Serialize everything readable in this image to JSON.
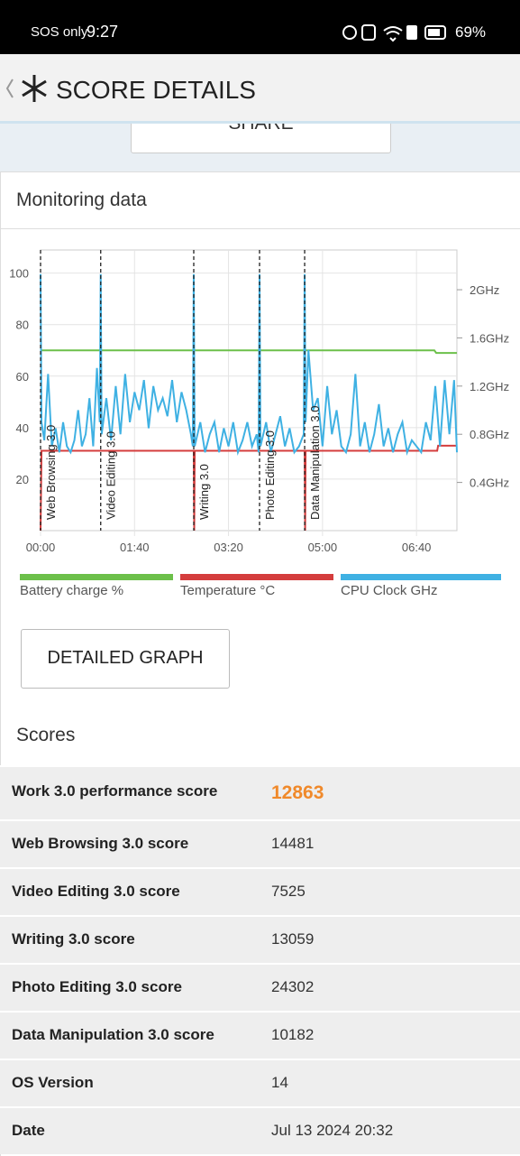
{
  "status_bar": {
    "carrier": "SOS only",
    "time": "9:27",
    "battery": "69%"
  },
  "header": {
    "title": "SCORE DETAILS"
  },
  "share_button": "SHARE",
  "monitoring": {
    "title": "Monitoring data"
  },
  "chart_data": {
    "type": "line",
    "xlim": [
      0,
      443
    ],
    "xticks": [
      {
        "value": 0,
        "label": "00:00"
      },
      {
        "value": 100,
        "label": "01:40"
      },
      {
        "value": 200,
        "label": "03:20"
      },
      {
        "value": 300,
        "label": "05:00"
      },
      {
        "value": 400,
        "label": "06:40"
      }
    ],
    "ylim": [
      0,
      109
    ],
    "yticks": [
      20,
      40,
      60,
      80,
      100
    ],
    "y2lim": [
      0,
      2.33
    ],
    "y2ticks": [
      {
        "value": 0.4,
        "label": "0.4GHz"
      },
      {
        "value": 0.8,
        "label": "0.8GHz"
      },
      {
        "value": 1.2,
        "label": "1.2GHz"
      },
      {
        "value": 1.6,
        "label": "1.6GHz"
      },
      {
        "value": 2,
        "label": "2GHz"
      }
    ],
    "grid": true,
    "annotations": [
      {
        "x": 0,
        "label": "Web Browsing 3.0"
      },
      {
        "x": 64,
        "label": "Video Editing 3.0"
      },
      {
        "x": 163,
        "label": "Writing 3.0"
      },
      {
        "x": 233,
        "label": "Photo Editing 3.0"
      },
      {
        "x": 281,
        "label": "Data Manipulation 3.0"
      }
    ],
    "series": [
      {
        "name": "Battery charge %",
        "color": "#6cc04a",
        "x": [
          1,
          419,
          421,
          443
        ],
        "values": [
          70,
          70,
          69,
          69
        ]
      },
      {
        "name": "Temperature °C",
        "color": "#d43d3d",
        "x": [
          0,
          1,
          163,
          163.5,
          164,
          281,
          281.5,
          282,
          422,
          423,
          443
        ],
        "values": [
          0,
          31,
          31,
          0,
          31,
          31,
          0,
          31,
          31,
          33,
          33
        ]
      },
      {
        "name": "CPU Clock GHz",
        "color": "#3fb1e3",
        "axis": "y2",
        "x": [
          0,
          1,
          4,
          8,
          12,
          16,
          20,
          24,
          28,
          32,
          36,
          40,
          44,
          48,
          52,
          56,
          60,
          63,
          64,
          65,
          70,
          75,
          80,
          85,
          90,
          95,
          100,
          105,
          110,
          115,
          120,
          125,
          130,
          135,
          140,
          145,
          150,
          155,
          160,
          162,
          163,
          164,
          170,
          175,
          180,
          185,
          190,
          195,
          200,
          205,
          210,
          215,
          220,
          225,
          230,
          232,
          233,
          234,
          240,
          245,
          250,
          255,
          260,
          265,
          270,
          275,
          280,
          281,
          282,
          285,
          290,
          295,
          300,
          305,
          310,
          315,
          320,
          325,
          330,
          335,
          340,
          345,
          350,
          355,
          360,
          365,
          370,
          375,
          380,
          385,
          390,
          395,
          400,
          405,
          410,
          415,
          420,
          425,
          430,
          435,
          440,
          443
        ],
        "values": [
          2.13,
          0.9,
          0.75,
          1.3,
          0.7,
          0.85,
          0.65,
          0.9,
          0.7,
          0.65,
          0.75,
          1.0,
          0.7,
          0.8,
          1.1,
          0.7,
          1.35,
          0.9,
          2.13,
          0.8,
          1.1,
          0.75,
          1.2,
          0.8,
          1.3,
          0.9,
          1.15,
          1.0,
          1.25,
          0.85,
          1.2,
          1.0,
          1.1,
          0.95,
          1.25,
          0.9,
          1.15,
          1.0,
          0.8,
          0.7,
          2.13,
          0.7,
          0.9,
          0.65,
          0.8,
          0.9,
          0.65,
          0.85,
          0.7,
          0.9,
          0.65,
          0.75,
          0.9,
          0.7,
          0.8,
          0.65,
          2.13,
          0.7,
          0.9,
          0.65,
          0.8,
          0.95,
          0.7,
          0.85,
          0.65,
          0.7,
          0.8,
          2.13,
          0.9,
          1.5,
          1.0,
          1.1,
          0.7,
          1.2,
          0.8,
          1.0,
          0.7,
          0.65,
          0.8,
          1.3,
          0.7,
          0.9,
          0.65,
          0.8,
          1.05,
          0.7,
          0.85,
          0.65,
          0.8,
          0.9,
          0.65,
          0.75,
          0.7,
          0.65,
          0.9,
          0.75,
          1.2,
          0.7,
          1.25,
          0.8,
          1.25,
          0.65
        ]
      }
    ]
  },
  "detailed_graph_button": "DETAILED GRAPH",
  "scores": {
    "title": "Scores",
    "rows": [
      [
        "Work 3.0 performance score",
        "12863"
      ],
      [
        "Web Browsing 3.0 score",
        "14481"
      ],
      [
        "Video Editing 3.0 score",
        "7525"
      ],
      [
        "Writing 3.0 score",
        "13059"
      ],
      [
        "Photo Editing 3.0 score",
        "24302"
      ],
      [
        "Data Manipulation 3.0 score",
        "10182"
      ],
      [
        "OS Version",
        "14"
      ],
      [
        "Date",
        "Jul 13 2024 20:32"
      ]
    ]
  }
}
